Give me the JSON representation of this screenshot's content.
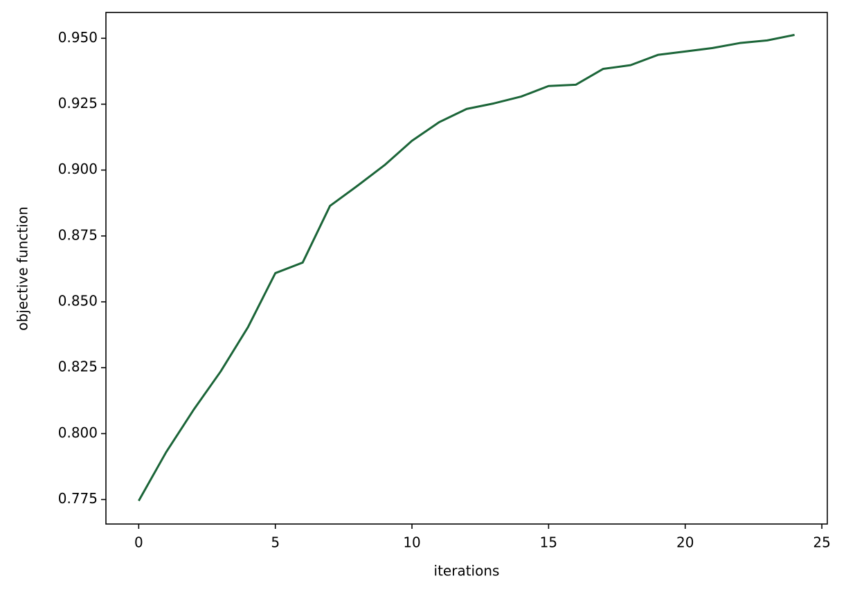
{
  "chart_data": {
    "type": "line",
    "xlabel": "iterations",
    "ylabel": "objective function",
    "x": [
      0,
      1,
      2,
      3,
      4,
      5,
      6,
      7,
      8,
      9,
      10,
      11,
      12,
      13,
      14,
      15,
      16,
      17,
      18,
      19,
      20,
      21,
      22,
      23,
      24
    ],
    "series": [
      {
        "color": "#1b6538",
        "values": [
          0.7745,
          0.7929,
          0.8089,
          0.8236,
          0.8404,
          0.8609,
          0.8649,
          0.8864,
          0.894,
          0.9019,
          0.9111,
          0.9182,
          0.9232,
          0.9253,
          0.9279,
          0.9319,
          0.9324,
          0.9384,
          0.9398,
          0.9437,
          0.945,
          0.9463,
          0.9482,
          0.9492,
          0.9513
        ]
      }
    ],
    "xlim": [
      -1.2,
      25.2
    ],
    "xticks": [
      0,
      5,
      10,
      15,
      20,
      25
    ],
    "ylim": [
      0.7657,
      0.9598
    ],
    "yticks": [
      0.775,
      {
        "value": 0.8,
        "label": "0.800"
      },
      0.825,
      {
        "value": 0.85,
        "label": "0.850"
      },
      0.875,
      {
        "value": 0.9,
        "label": "0.900"
      },
      0.925,
      {
        "value": 0.95,
        "label": "0.950"
      }
    ]
  }
}
